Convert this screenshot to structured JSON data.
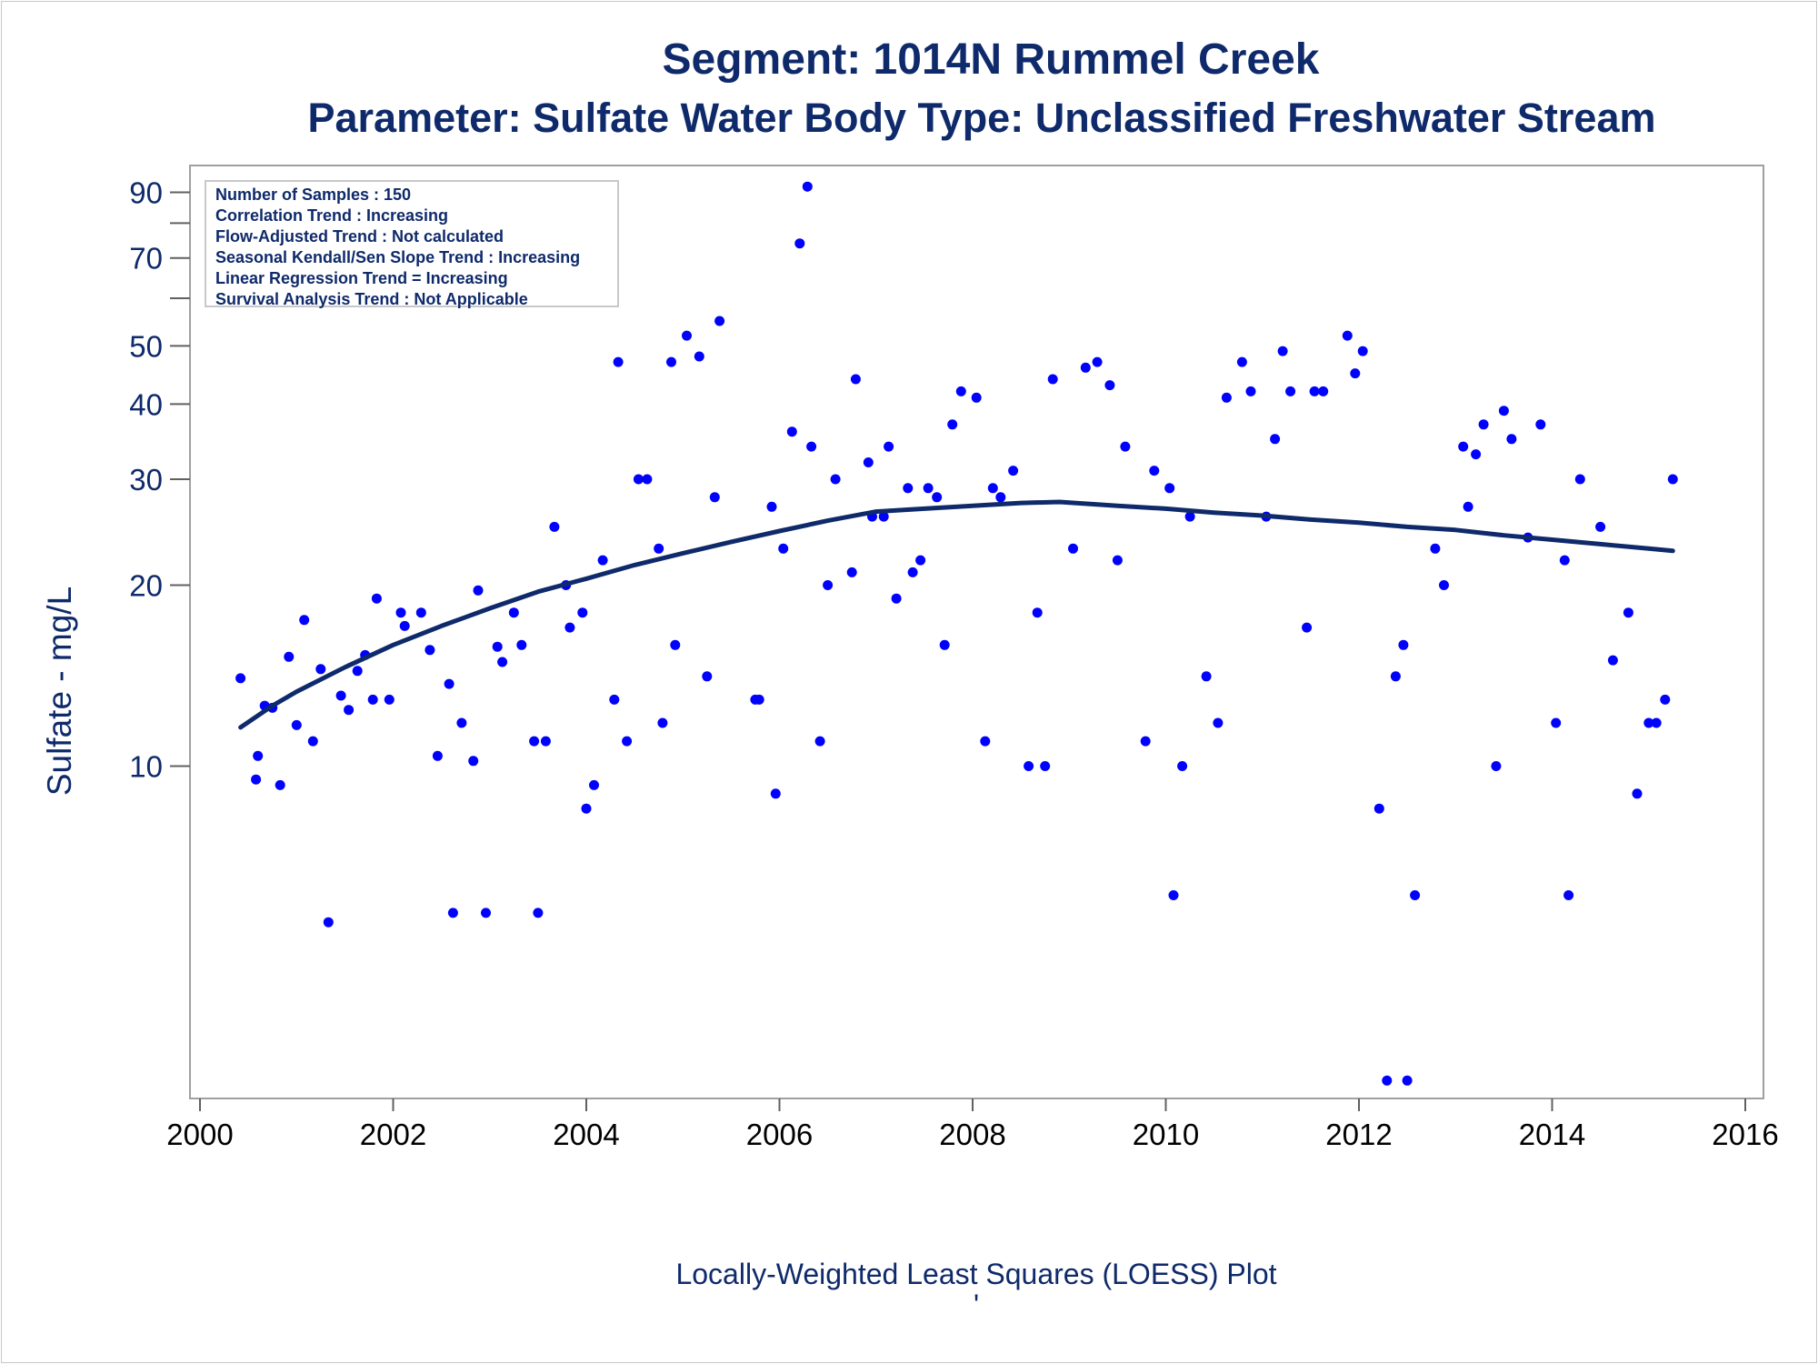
{
  "title": "Segment: 1014N  Rummel Creek",
  "subtitle": "Parameter: Sulfate   Water Body Type: Unclassified Freshwater Stream",
  "stats": [
    "Number of Samples : 150",
    "Correlation Trend : Increasing",
    "Flow-Adjusted Trend : Not calculated",
    "Seasonal Kendall/Sen Slope Trend : Increasing",
    "Linear Regression Trend = Increasing",
    "Survival Analysis Trend : Not Applicable"
  ],
  "footnote": "Locally-Weighted Least Squares (LOESS) Plot",
  "footnote_mark": "'",
  "colors": {
    "points": "#0000ff",
    "loess": "#0f2a6b",
    "text": "#0f2a6b",
    "frame": "#a0a0a0"
  },
  "chart_data": {
    "type": "scatter",
    "xlabel": "",
    "ylabel": "Sulfate - mg/L",
    "xlim": [
      2000,
      2016
    ],
    "ylim": [
      2.9,
      95
    ],
    "yscale": "log",
    "x_ticks": [
      "2000",
      "2002",
      "2004",
      "2006",
      "2008",
      "2010",
      "2012",
      "2014",
      "2016"
    ],
    "y_ticks": [
      10,
      20,
      30,
      40,
      50,
      60,
      70,
      80,
      90
    ],
    "y_tick_labels": [
      "10",
      "20",
      "30",
      "40",
      "50",
      "",
      "70",
      "",
      "90"
    ],
    "grid": false,
    "legend": "none",
    "series": [
      {
        "kind": "points",
        "points": [
          [
            2000.42,
            14.0
          ],
          [
            2000.58,
            9.5
          ],
          [
            2000.6,
            10.4
          ],
          [
            2000.67,
            12.6
          ],
          [
            2000.75,
            12.5
          ],
          [
            2000.83,
            9.3
          ],
          [
            2000.92,
            15.2
          ],
          [
            2001.0,
            11.7
          ],
          [
            2001.08,
            17.5
          ],
          [
            2001.17,
            11.0
          ],
          [
            2001.25,
            14.5
          ],
          [
            2001.33,
            5.5
          ],
          [
            2001.46,
            13.1
          ],
          [
            2001.54,
            12.4
          ],
          [
            2001.63,
            14.4
          ],
          [
            2001.71,
            15.3
          ],
          [
            2001.79,
            12.9
          ],
          [
            2001.83,
            19.0
          ],
          [
            2001.96,
            12.9
          ],
          [
            2002.08,
            18.0
          ],
          [
            2002.12,
            17.1
          ],
          [
            2002.29,
            18.0
          ],
          [
            2002.38,
            15.6
          ],
          [
            2002.46,
            10.4
          ],
          [
            2002.58,
            13.7
          ],
          [
            2002.62,
            5.7
          ],
          [
            2002.71,
            11.8
          ],
          [
            2002.83,
            10.2
          ],
          [
            2002.88,
            19.6
          ],
          [
            2002.96,
            5.7
          ],
          [
            2003.08,
            15.8
          ],
          [
            2003.13,
            14.9
          ],
          [
            2003.25,
            18.0
          ],
          [
            2003.33,
            15.9
          ],
          [
            2003.46,
            11.0
          ],
          [
            2003.5,
            5.7
          ],
          [
            2003.58,
            11.0
          ],
          [
            2003.67,
            25.0
          ],
          [
            2003.79,
            20.0
          ],
          [
            2003.83,
            17.0
          ],
          [
            2003.96,
            18.0
          ],
          [
            2004.0,
            8.5
          ],
          [
            2004.08,
            9.3
          ],
          [
            2004.17,
            22.0
          ],
          [
            2004.29,
            12.9
          ],
          [
            2004.33,
            47.0
          ],
          [
            2004.42,
            11.0
          ],
          [
            2004.54,
            30.0
          ],
          [
            2004.63,
            30.0
          ],
          [
            2004.75,
            23.0
          ],
          [
            2004.79,
            11.8
          ],
          [
            2004.88,
            47.0
          ],
          [
            2004.92,
            15.9
          ],
          [
            2005.04,
            52.0
          ],
          [
            2005.17,
            48.0
          ],
          [
            2005.25,
            14.1
          ],
          [
            2005.33,
            28.0
          ],
          [
            2005.38,
            55.0
          ],
          [
            2005.75,
            12.9
          ],
          [
            2005.79,
            12.9
          ],
          [
            2005.92,
            27.0
          ],
          [
            2005.96,
            9.0
          ],
          [
            2006.04,
            23.0
          ],
          [
            2006.13,
            36.0
          ],
          [
            2006.21,
            74.0
          ],
          [
            2006.29,
            92.0
          ],
          [
            2006.33,
            34.0
          ],
          [
            2006.42,
            11.0
          ],
          [
            2006.5,
            20.0
          ],
          [
            2006.58,
            30.0
          ],
          [
            2006.75,
            21.0
          ],
          [
            2006.79,
            44.0
          ],
          [
            2006.92,
            32.0
          ],
          [
            2006.96,
            26.0
          ],
          [
            2007.08,
            26.0
          ],
          [
            2007.13,
            34.0
          ],
          [
            2007.21,
            19.0
          ],
          [
            2007.33,
            29.0
          ],
          [
            2007.38,
            21.0
          ],
          [
            2007.46,
            22.0
          ],
          [
            2007.54,
            29.0
          ],
          [
            2007.63,
            28.0
          ],
          [
            2007.71,
            15.9
          ],
          [
            2007.79,
            37.0
          ],
          [
            2007.88,
            42.0
          ],
          [
            2008.04,
            41.0
          ],
          [
            2008.13,
            11.0
          ],
          [
            2008.21,
            29.0
          ],
          [
            2008.29,
            28.0
          ],
          [
            2008.42,
            31.0
          ],
          [
            2008.58,
            10.0
          ],
          [
            2008.67,
            18.0
          ],
          [
            2008.75,
            10.0
          ],
          [
            2008.83,
            44.0
          ],
          [
            2009.04,
            23.0
          ],
          [
            2009.17,
            46.0
          ],
          [
            2009.29,
            47.0
          ],
          [
            2009.42,
            43.0
          ],
          [
            2009.5,
            22.0
          ],
          [
            2009.58,
            34.0
          ],
          [
            2009.79,
            11.0
          ],
          [
            2009.88,
            31.0
          ],
          [
            2010.04,
            29.0
          ],
          [
            2010.08,
            6.1
          ],
          [
            2010.17,
            10.0
          ],
          [
            2010.25,
            26.0
          ],
          [
            2010.42,
            14.1
          ],
          [
            2010.54,
            11.8
          ],
          [
            2010.63,
            41.0
          ],
          [
            2010.79,
            47.0
          ],
          [
            2010.88,
            42.0
          ],
          [
            2011.04,
            26.0
          ],
          [
            2011.13,
            35.0
          ],
          [
            2011.21,
            49.0
          ],
          [
            2011.29,
            42.0
          ],
          [
            2011.46,
            17.0
          ],
          [
            2011.54,
            42.0
          ],
          [
            2011.63,
            42.0
          ],
          [
            2011.88,
            52.0
          ],
          [
            2011.96,
            45.0
          ],
          [
            2012.04,
            49.0
          ],
          [
            2012.21,
            8.5
          ],
          [
            2012.29,
            3.0
          ],
          [
            2012.38,
            14.1
          ],
          [
            2012.46,
            15.9
          ],
          [
            2012.5,
            3.0
          ],
          [
            2012.58,
            6.1
          ],
          [
            2012.79,
            23.0
          ],
          [
            2012.88,
            20.0
          ],
          [
            2013.08,
            34.0
          ],
          [
            2013.13,
            27.0
          ],
          [
            2013.21,
            33.0
          ],
          [
            2013.29,
            37.0
          ],
          [
            2013.42,
            10.0
          ],
          [
            2013.5,
            39.0
          ],
          [
            2013.58,
            35.0
          ],
          [
            2013.75,
            24.0
          ],
          [
            2013.88,
            37.0
          ],
          [
            2014.04,
            11.8
          ],
          [
            2014.13,
            22.0
          ],
          [
            2014.17,
            6.1
          ],
          [
            2014.29,
            30.0
          ],
          [
            2014.5,
            25.0
          ],
          [
            2014.63,
            15.0
          ],
          [
            2014.79,
            18.0
          ],
          [
            2014.88,
            9.0
          ],
          [
            2015.0,
            11.8
          ],
          [
            2015.08,
            11.8
          ],
          [
            2015.17,
            12.9
          ],
          [
            2015.25,
            30.0
          ]
        ]
      },
      {
        "kind": "loess",
        "points": [
          [
            2000.42,
            11.6
          ],
          [
            2000.75,
            12.6
          ],
          [
            2001.0,
            13.3
          ],
          [
            2001.5,
            14.6
          ],
          [
            2002.0,
            15.9
          ],
          [
            2002.5,
            17.1
          ],
          [
            2003.0,
            18.3
          ],
          [
            2003.5,
            19.5
          ],
          [
            2004.0,
            20.5
          ],
          [
            2004.5,
            21.6
          ],
          [
            2005.0,
            22.6
          ],
          [
            2005.5,
            23.6
          ],
          [
            2006.0,
            24.6
          ],
          [
            2006.5,
            25.6
          ],
          [
            2007.0,
            26.5
          ],
          [
            2007.5,
            26.8
          ],
          [
            2008.0,
            27.1
          ],
          [
            2008.5,
            27.4
          ],
          [
            2008.9,
            27.5
          ],
          [
            2009.5,
            27.1
          ],
          [
            2010.0,
            26.8
          ],
          [
            2010.5,
            26.4
          ],
          [
            2011.0,
            26.1
          ],
          [
            2011.5,
            25.7
          ],
          [
            2012.0,
            25.4
          ],
          [
            2012.5,
            25.0
          ],
          [
            2013.0,
            24.7
          ],
          [
            2013.5,
            24.2
          ],
          [
            2014.0,
            23.8
          ],
          [
            2014.5,
            23.4
          ],
          [
            2015.0,
            23.0
          ],
          [
            2015.25,
            22.8
          ]
        ]
      }
    ]
  }
}
